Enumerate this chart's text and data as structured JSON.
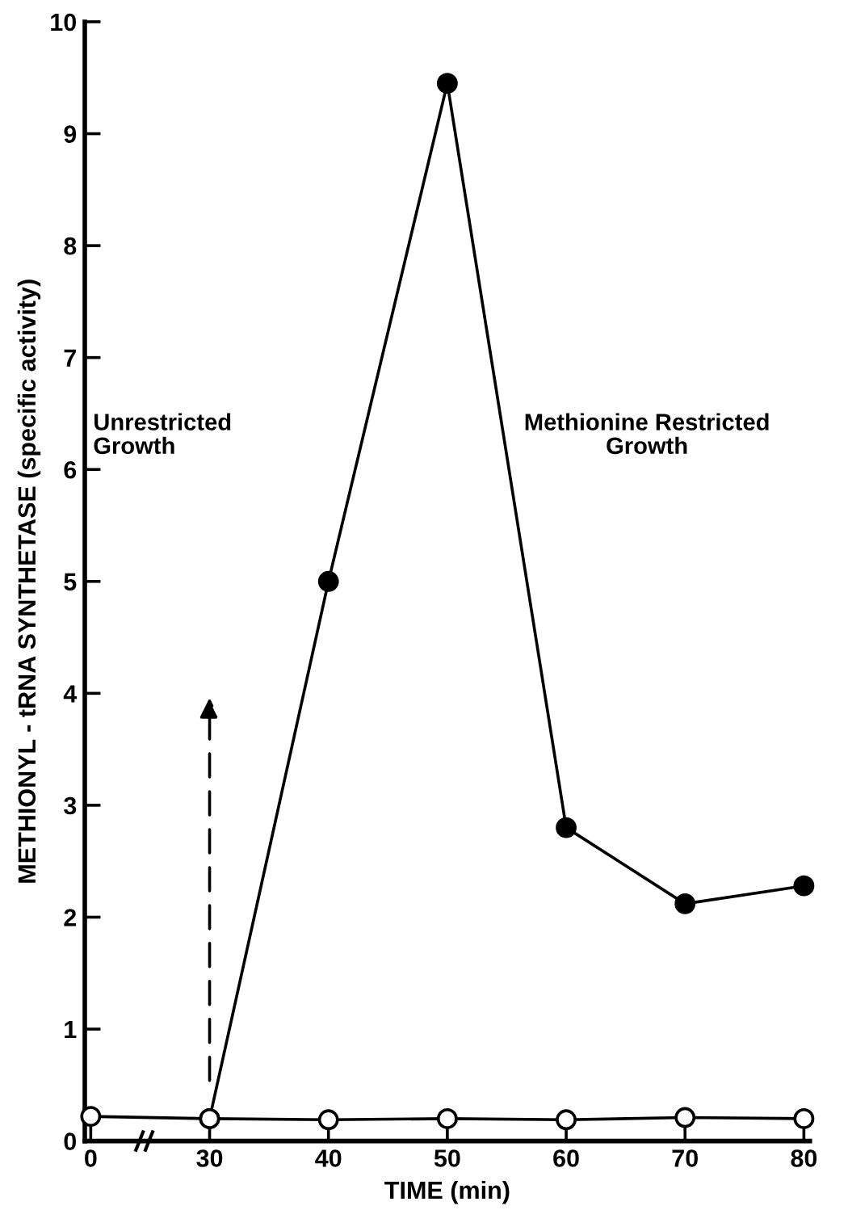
{
  "chart_data": {
    "type": "line",
    "xlabel": "TIME (min)",
    "ylabel": "METHIONYL - tRNA SYNTHETASE (specific activity)",
    "categories": [
      "0",
      "30",
      "40",
      "50",
      "60",
      "70",
      "80"
    ],
    "series": [
      {
        "color": "#000000",
        "marker": "circle",
        "values": [
          null,
          0.2,
          5.0,
          9.45,
          2.8,
          2.12,
          2.28
        ]
      },
      {
        "color": "#000000",
        "marker": "circle",
        "values": [
          0.22,
          0.2,
          0.19,
          0.2,
          0.19,
          0.21,
          0.2
        ]
      }
    ],
    "ylim": [
      0,
      10
    ],
    "yticks": [
      0,
      1,
      2,
      3,
      4,
      5,
      6,
      7,
      8,
      9,
      10
    ],
    "annotations": [
      "Unrestricted\nGrowth",
      "Methionine Restricted\nGrowth"
    ],
    "grid": false,
    "legend": false
  }
}
